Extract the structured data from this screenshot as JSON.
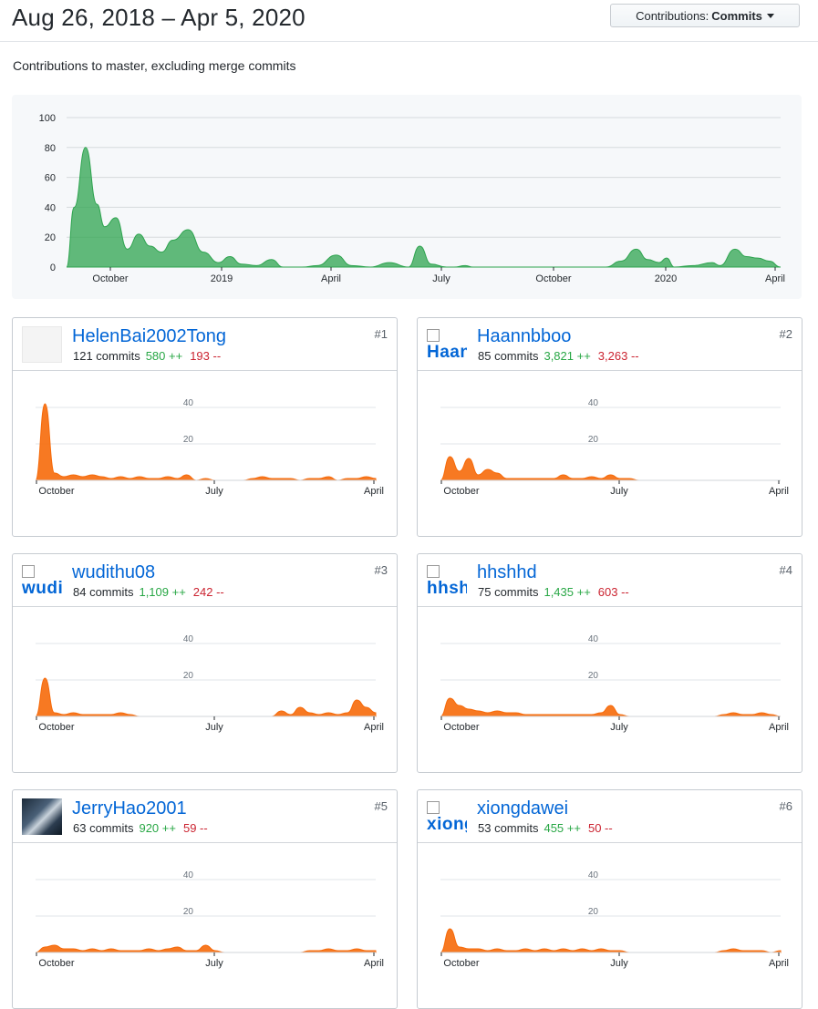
{
  "header": {
    "date_range": "Aug 26, 2018 – Apr 5, 2020",
    "select": {
      "label": "Contributions:",
      "value": "Commits"
    }
  },
  "subtitle": "Contributions to master, excluding merge commits",
  "main_chart": {
    "y_ticks": [
      "0",
      "20",
      "40",
      "60",
      "80",
      "100"
    ],
    "x_ticks": [
      "October",
      "2019",
      "April",
      "July",
      "October",
      "2020",
      "April"
    ],
    "color": "#2ea44f"
  },
  "card_chart": {
    "y_ticks": [
      "20",
      "40"
    ],
    "x_ticks": [
      "October",
      "July",
      "April"
    ],
    "color": "#f66a0a"
  },
  "contributors": [
    {
      "login": "HelenBai2002Tong",
      "commits": "121 commits",
      "additions": "580 ++",
      "deletions": "193 --",
      "rank": "#1",
      "avatar_alt": ""
    },
    {
      "login": "Haannbboo",
      "commits": "85 commits",
      "additions": "3,821 ++",
      "deletions": "3,263 --",
      "rank": "#2",
      "avatar_alt": "Haan"
    },
    {
      "login": "wudithu08",
      "commits": "84 commits",
      "additions": "1,109 ++",
      "deletions": "242 --",
      "rank": "#3",
      "avatar_alt": "wudit"
    },
    {
      "login": "hhshhd",
      "commits": "75 commits",
      "additions": "1,435 ++",
      "deletions": "603 --",
      "rank": "#4",
      "avatar_alt": "hhsh"
    },
    {
      "login": "JerryHao2001",
      "commits": "63 commits",
      "additions": "920 ++",
      "deletions": "59 --",
      "rank": "#5",
      "avatar_alt": ""
    },
    {
      "login": "xiongdawei",
      "commits": "53 commits",
      "additions": "455 ++",
      "deletions": "50 --",
      "rank": "#6",
      "avatar_alt": "xiong"
    }
  ],
  "chart_data": [
    {
      "type": "area",
      "title": "",
      "series": [
        {
          "points": [
            [
              0,
              0
            ],
            [
              0.02,
              40
            ],
            [
              0.05,
              80
            ],
            [
              0.08,
              42
            ],
            [
              0.1,
              27
            ],
            [
              0.13,
              33
            ],
            [
              0.16,
              12
            ],
            [
              0.19,
              22
            ],
            [
              0.22,
              14
            ],
            [
              0.25,
              10
            ],
            [
              0.28,
              18
            ],
            [
              0.32,
              25
            ],
            [
              0.36,
              10
            ],
            [
              0.4,
              3
            ],
            [
              0.43,
              7
            ],
            [
              0.46,
              2
            ],
            [
              0.5,
              1
            ],
            [
              0.54,
              5
            ],
            [
              0.57,
              0
            ],
            [
              0.62,
              0
            ],
            [
              0.66,
              1
            ],
            [
              0.71,
              8
            ],
            [
              0.75,
              1
            ],
            [
              0.8,
              0
            ],
            [
              0.85,
              3
            ],
            [
              0.9,
              0
            ],
            [
              0.93,
              14
            ],
            [
              0.96,
              2
            ],
            [
              1.0,
              0
            ],
            [
              1.02,
              0
            ],
            [
              1.05,
              1
            ],
            [
              1.07,
              0
            ],
            [
              1.12,
              0
            ],
            [
              1.18,
              0
            ],
            [
              1.25,
              0
            ],
            [
              1.3,
              0
            ],
            [
              1.36,
              0
            ],
            [
              1.42,
              0
            ],
            [
              1.46,
              4
            ],
            [
              1.5,
              12
            ],
            [
              1.53,
              5
            ],
            [
              1.56,
              3
            ],
            [
              1.58,
              6
            ],
            [
              1.6,
              0
            ],
            [
              1.65,
              1
            ],
            [
              1.7,
              3
            ],
            [
              1.72,
              1
            ],
            [
              1.76,
              12
            ],
            [
              1.79,
              7
            ],
            [
              1.82,
              6
            ],
            [
              1.85,
              4
            ],
            [
              1.88,
              0
            ]
          ]
        }
      ],
      "ylim": [
        0,
        100
      ]
    },
    {
      "type": "area",
      "series": [
        {
          "name": "HelenBai2002Tong",
          "values": [
            0,
            42,
            4,
            2,
            3,
            2,
            3,
            2,
            1,
            2,
            1,
            2,
            1,
            1,
            2,
            1,
            3,
            0,
            1,
            0,
            0,
            0,
            0,
            1,
            2,
            1,
            1,
            1,
            0,
            1,
            1,
            2,
            0,
            1,
            1,
            2,
            1
          ]
        }
      ],
      "ylim": [
        0,
        50
      ]
    },
    {
      "type": "area",
      "series": [
        {
          "name": "Haannbboo",
          "values": [
            0,
            13,
            5,
            12,
            3,
            6,
            4,
            1,
            1,
            1,
            1,
            1,
            1,
            3,
            1,
            1,
            2,
            1,
            3,
            1,
            1,
            0,
            0,
            0,
            0,
            0,
            0,
            0,
            0,
            0,
            0,
            0,
            0,
            0,
            0,
            0,
            0
          ]
        }
      ],
      "ylim": [
        0,
        50
      ]
    },
    {
      "type": "area",
      "series": [
        {
          "name": "wudithu08",
          "values": [
            0,
            21,
            2,
            1,
            2,
            1,
            1,
            1,
            1,
            2,
            1,
            0,
            0,
            0,
            0,
            0,
            0,
            0,
            0,
            0,
            0,
            0,
            0,
            0,
            0,
            0,
            3,
            1,
            5,
            2,
            1,
            2,
            1,
            2,
            9,
            5,
            2
          ]
        }
      ],
      "ylim": [
        0,
        50
      ]
    },
    {
      "type": "area",
      "series": [
        {
          "name": "hhshhd",
          "values": [
            0,
            10,
            6,
            4,
            3,
            2,
            3,
            2,
            2,
            1,
            1,
            1,
            1,
            1,
            1,
            1,
            1,
            2,
            6,
            1,
            0,
            0,
            0,
            0,
            0,
            0,
            0,
            0,
            0,
            0,
            1,
            2,
            1,
            1,
            2,
            1,
            0
          ]
        }
      ],
      "ylim": [
        0,
        50
      ]
    },
    {
      "type": "area",
      "series": [
        {
          "name": "JerryHao2001",
          "values": [
            0,
            3,
            4,
            2,
            2,
            1,
            2,
            1,
            2,
            1,
            1,
            1,
            2,
            1,
            2,
            3,
            1,
            1,
            4,
            1,
            0,
            0,
            0,
            0,
            0,
            0,
            0,
            0,
            0,
            1,
            1,
            2,
            1,
            1,
            2,
            1,
            1
          ]
        }
      ],
      "ylim": [
        0,
        50
      ]
    },
    {
      "type": "area",
      "series": [
        {
          "name": "xiongdawei",
          "values": [
            0,
            13,
            3,
            2,
            2,
            1,
            2,
            1,
            1,
            2,
            1,
            2,
            1,
            2,
            1,
            2,
            1,
            2,
            1,
            1,
            0,
            0,
            0,
            0,
            0,
            0,
            0,
            0,
            0,
            0,
            1,
            2,
            1,
            1,
            1,
            0,
            1
          ]
        }
      ],
      "ylim": [
        0,
        50
      ]
    }
  ]
}
